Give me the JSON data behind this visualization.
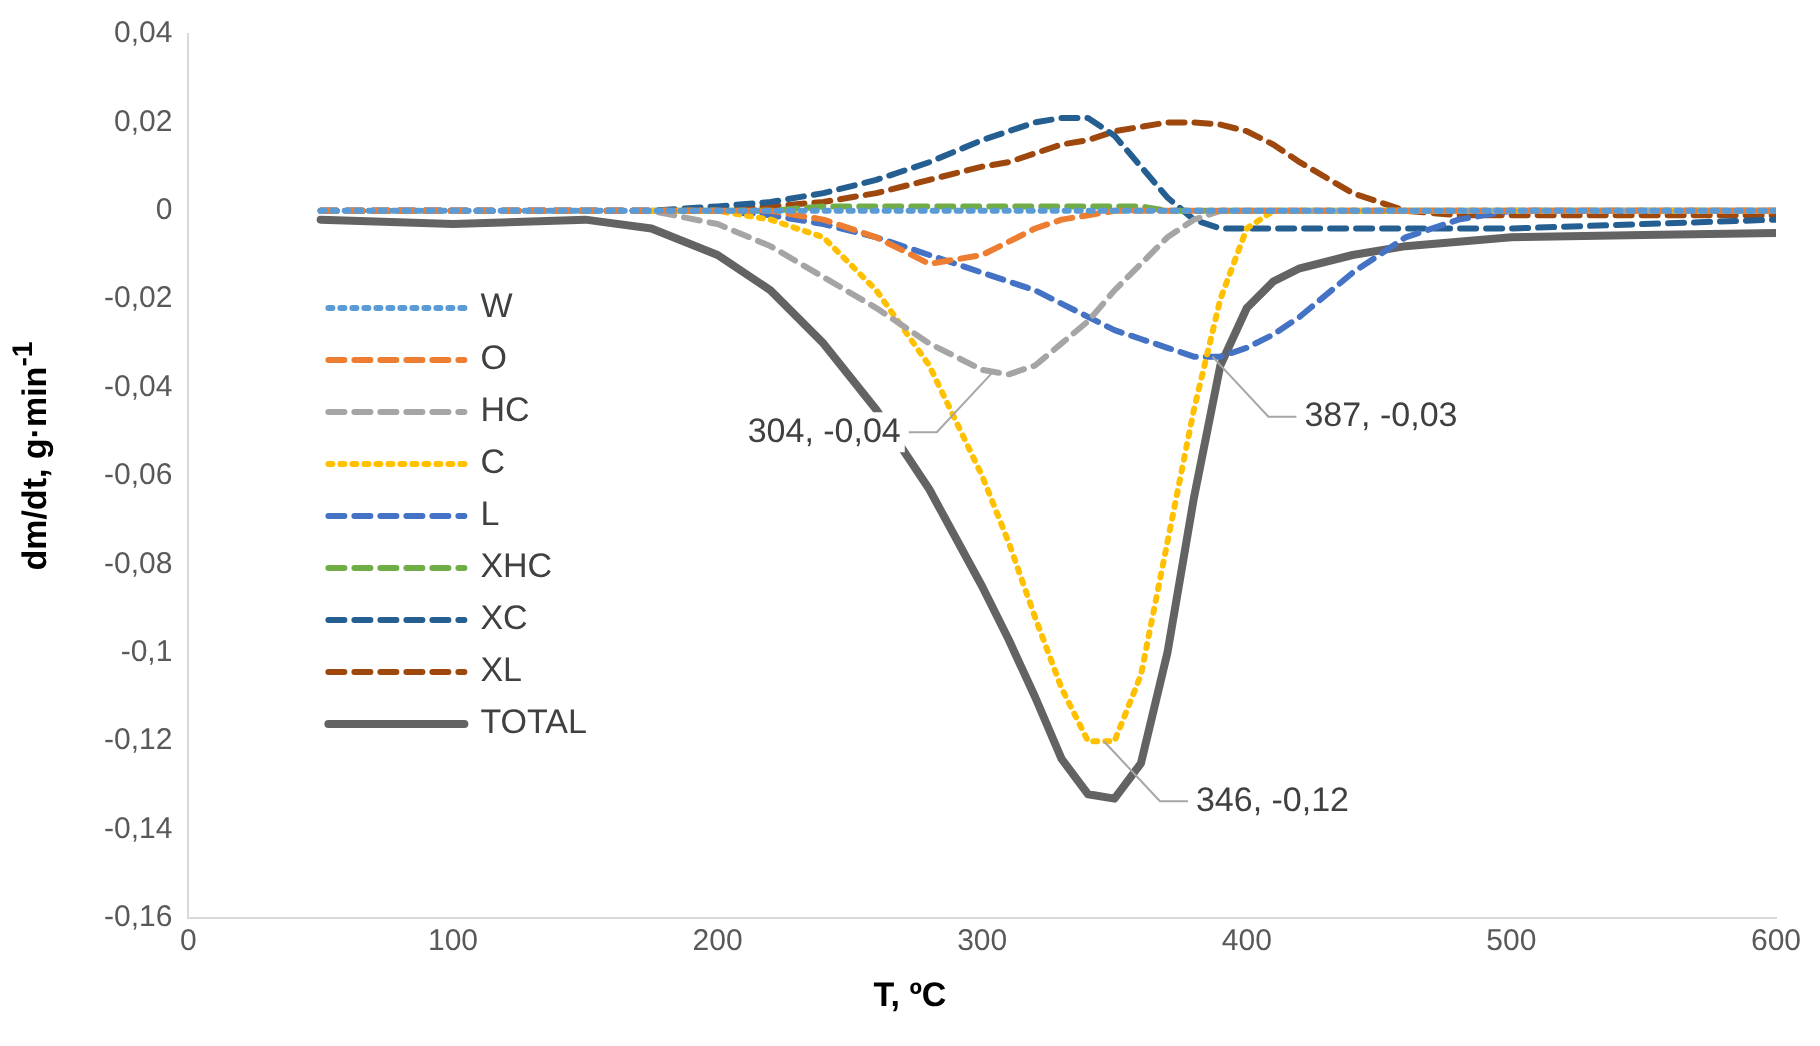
{
  "chart_data": {
    "type": "line",
    "xlabel": "T, ºC",
    "ylabel": "dm/dt, g·min$^{-1}$",
    "x": [
      50,
      100,
      150,
      175,
      200,
      220,
      240,
      260,
      280,
      300,
      310,
      320,
      330,
      340,
      350,
      360,
      370,
      380,
      390,
      400,
      410,
      420,
      440,
      460,
      480,
      500,
      550,
      600
    ],
    "series": [
      {
        "name": "W",
        "color": "#5b9bd5",
        "line_style": "dotted",
        "values": [
          0,
          0,
          0,
          0,
          0,
          0,
          0,
          0,
          0,
          0,
          0,
          0,
          0,
          0,
          0,
          0,
          0,
          0,
          0,
          0,
          0,
          0,
          0,
          0,
          0,
          0,
          0,
          0
        ]
      },
      {
        "name": "O",
        "color": "#ed7d31",
        "line_style": "dashed",
        "values": [
          0,
          0,
          0,
          0,
          0,
          0,
          -0.002,
          -0.006,
          -0.012,
          -0.01,
          -0.007,
          -0.004,
          -0.002,
          -0.001,
          0,
          0,
          0,
          0,
          0,
          0,
          0,
          0,
          0,
          0,
          0,
          0,
          0,
          0
        ]
      },
      {
        "name": "HC",
        "color": "#a5a5a5",
        "line_style": "dashed",
        "values": [
          0,
          0,
          0,
          0,
          -0.003,
          -0.008,
          -0.015,
          -0.022,
          -0.03,
          -0.036,
          -0.037,
          -0.035,
          -0.03,
          -0.025,
          -0.018,
          -0.012,
          -0.006,
          -0.002,
          0,
          0,
          0,
          0,
          0,
          0,
          0,
          0,
          0,
          0
        ]
      },
      {
        "name": "C",
        "color": "#ffc000",
        "line_style": "dotted",
        "values": [
          null,
          null,
          null,
          0,
          0,
          -0.002,
          -0.006,
          -0.018,
          -0.035,
          -0.06,
          -0.075,
          -0.092,
          -0.108,
          -0.12,
          -0.12,
          -0.105,
          -0.075,
          -0.045,
          -0.02,
          -0.004,
          0,
          0,
          0,
          0,
          0,
          0,
          0,
          0
        ]
      },
      {
        "name": "L",
        "color": "#4472c4",
        "line_style": "dashed",
        "values": [
          0,
          0,
          0,
          0,
          0,
          -0.001,
          -0.003,
          -0.006,
          -0.01,
          -0.014,
          -0.016,
          -0.018,
          -0.021,
          -0.024,
          -0.027,
          -0.029,
          -0.031,
          -0.033,
          -0.033,
          -0.031,
          -0.028,
          -0.024,
          -0.014,
          -0.006,
          -0.002,
          0,
          0,
          0
        ]
      },
      {
        "name": "XHC",
        "color": "#70ad47",
        "line_style": "dashed",
        "values": [
          null,
          null,
          null,
          0,
          0,
          0,
          0.001,
          0.001,
          0.001,
          0.001,
          0.001,
          0.001,
          0.001,
          0.001,
          0.001,
          0.001,
          0,
          0,
          0,
          0,
          0,
          0,
          0,
          0,
          0,
          0,
          0,
          0
        ]
      },
      {
        "name": "XC",
        "color": "#255e91",
        "line_style": "dashed",
        "values": [
          0,
          0,
          0,
          0,
          0.001,
          0.002,
          0.004,
          0.007,
          0.011,
          0.016,
          0.018,
          0.02,
          0.021,
          0.021,
          0.017,
          0.01,
          0.003,
          -0.002,
          -0.004,
          -0.004,
          -0.004,
          -0.004,
          -0.004,
          -0.004,
          -0.004,
          -0.004,
          -0.003,
          -0.002
        ]
      },
      {
        "name": "XL",
        "color": "#9e480e",
        "line_style": "dashed",
        "values": [
          0,
          0,
          0,
          0,
          0,
          0.001,
          0.002,
          0.004,
          0.007,
          0.01,
          0.011,
          0.013,
          0.015,
          0.016,
          0.018,
          0.019,
          0.02,
          0.02,
          0.0195,
          0.018,
          0.015,
          0.011,
          0.004,
          0,
          -0.001,
          -0.001,
          -0.001,
          -0.001
        ]
      },
      {
        "name": "TOTAL",
        "color": "#636363",
        "line_style": "solid",
        "values": [
          -0.002,
          -0.003,
          -0.002,
          -0.004,
          -0.01,
          -0.018,
          -0.03,
          -0.045,
          -0.063,
          -0.085,
          -0.097,
          -0.11,
          -0.124,
          -0.132,
          -0.133,
          -0.125,
          -0.1,
          -0.065,
          -0.035,
          -0.022,
          -0.016,
          -0.013,
          -0.01,
          -0.008,
          -0.007,
          -0.006,
          -0.0055,
          -0.005
        ]
      }
    ],
    "xlim": [
      0,
      600
    ],
    "xticks": [
      0,
      100,
      200,
      300,
      400,
      500,
      600
    ],
    "ylim": [
      -0.16,
      0.04
    ],
    "yticks": [
      {
        "value": -0.16,
        "label": "-0,16"
      },
      {
        "value": -0.14,
        "label": "-0,14"
      },
      {
        "value": -0.12,
        "label": "-0,12"
      },
      {
        "value": -0.1,
        "label": "-0,1"
      },
      {
        "value": -0.08,
        "label": "-0,08"
      },
      {
        "value": -0.06,
        "label": "-0,06"
      },
      {
        "value": -0.04,
        "label": "-0,04"
      },
      {
        "value": -0.02,
        "label": "-0,02"
      },
      {
        "value": 0,
        "label": "0"
      },
      {
        "value": 0.02,
        "label": "0,02"
      },
      {
        "value": 0.04,
        "label": "0,04"
      }
    ],
    "annotations": [
      {
        "text": "304, -0,04",
        "x": 304,
        "y": -0.0365
      },
      {
        "text": "346, -0,12",
        "x": 346,
        "y": -0.12
      },
      {
        "text": "387, -0,03",
        "x": 387,
        "y": -0.033
      }
    ],
    "grid": false,
    "legend": "left",
    "marker": "none"
  }
}
